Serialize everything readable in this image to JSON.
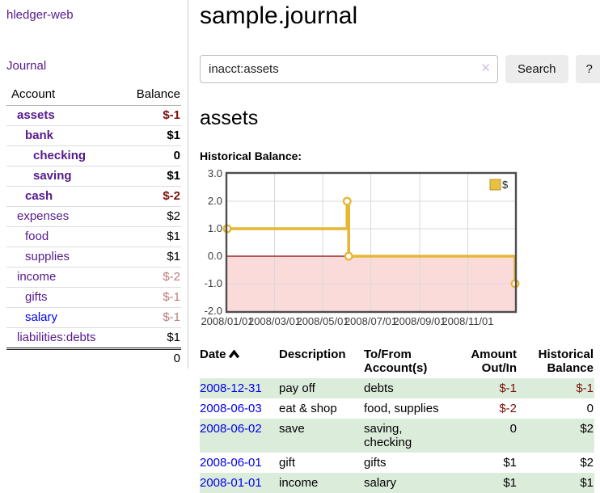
{
  "app": {
    "brand": "hledger-web",
    "nav_journal": "Journal"
  },
  "sidebar": {
    "header": {
      "account": "Account",
      "balance": "Balance"
    },
    "accounts": [
      {
        "name": "assets",
        "balance": "$-1",
        "depth": 1,
        "bold": true,
        "neg": "strong"
      },
      {
        "name": "bank",
        "balance": "$1",
        "depth": 2,
        "bold": true
      },
      {
        "name": "checking",
        "balance": "0",
        "depth": 3,
        "bold": true
      },
      {
        "name": "saving",
        "balance": "$1",
        "depth": 3,
        "bold": true
      },
      {
        "name": "cash",
        "balance": "$-2",
        "depth": 2,
        "bold": true,
        "neg": "strong"
      },
      {
        "name": "expenses",
        "balance": "$2",
        "depth": 1
      },
      {
        "name": "food",
        "balance": "$1",
        "depth": 2
      },
      {
        "name": "supplies",
        "balance": "$1",
        "depth": 2
      },
      {
        "name": "income",
        "balance": "$-2",
        "depth": 1,
        "neg": "dim"
      },
      {
        "name": "gifts",
        "balance": "$-1",
        "depth": 2,
        "neg": "dim"
      },
      {
        "name": "salary",
        "balance": "$-1",
        "depth": 2,
        "neg": "dim",
        "link": "blue"
      },
      {
        "name": "liabilities:debts",
        "balance": "$1",
        "depth": 1
      }
    ],
    "total": "0"
  },
  "header": {
    "title": "sample.journal"
  },
  "search": {
    "query": "inacct:assets",
    "clear_icon": "✕",
    "button_label": "Search",
    "help_label": "?"
  },
  "account_page": {
    "title": "assets",
    "chart_label": "Historical Balance:"
  },
  "chart_data": {
    "type": "line",
    "title": "Historical Balance:",
    "step": true,
    "series": [
      {
        "name": "$",
        "points": [
          {
            "x": "2008-01-01",
            "y": 1
          },
          {
            "x": "2008-06-01",
            "y": 2
          },
          {
            "x": "2008-06-03",
            "y": 0
          },
          {
            "x": "2008-12-31",
            "y": -1
          }
        ]
      }
    ],
    "xlim": [
      "2008-01-01",
      "2008-12-31"
    ],
    "ylim": [
      -2,
      3
    ],
    "yticks": [
      3.0,
      2.0,
      1.0,
      0.0,
      -1.0,
      -2.0
    ],
    "xticks": [
      "2008/01/01",
      "2008/03/01",
      "2008/05/01",
      "2008/07/01",
      "2008/09/01",
      "2008/11/01"
    ],
    "legend": {
      "label": "$",
      "position": "top-right"
    },
    "colors": {
      "line": "#e6b735",
      "point_fill": "#ffffff",
      "legend_fill": "#e9c041",
      "legend_border": "#b8952e",
      "zero_line": "#8b0000",
      "negative_fill": "#fbdada",
      "grid": "#dadada",
      "border": "#4d4d4d"
    },
    "grid": true
  },
  "register": {
    "columns": {
      "date": "Date",
      "description": "Description",
      "accounts": "To/From Account(s)",
      "amount": "Amount Out/In",
      "balance": "Historical Balance"
    },
    "sort": "date-ascending",
    "rows": [
      {
        "date": "2008-12-31",
        "description": "pay off",
        "accounts": "debts",
        "amount": "$-1",
        "balance": "$-1",
        "amount_neg": true,
        "balance_neg": true
      },
      {
        "date": "2008-06-03",
        "description": "eat & shop",
        "accounts": "food, supplies",
        "amount": "$-2",
        "balance": "0",
        "amount_neg": true
      },
      {
        "date": "2008-06-02",
        "description": "save",
        "accounts": "saving, checking",
        "amount": "0",
        "balance": "$2"
      },
      {
        "date": "2008-06-01",
        "description": "gift",
        "accounts": "gifts",
        "amount": "$1",
        "balance": "$2"
      },
      {
        "date": "2008-01-01",
        "description": "income",
        "accounts": "salary",
        "amount": "$1",
        "balance": "$1"
      }
    ]
  }
}
